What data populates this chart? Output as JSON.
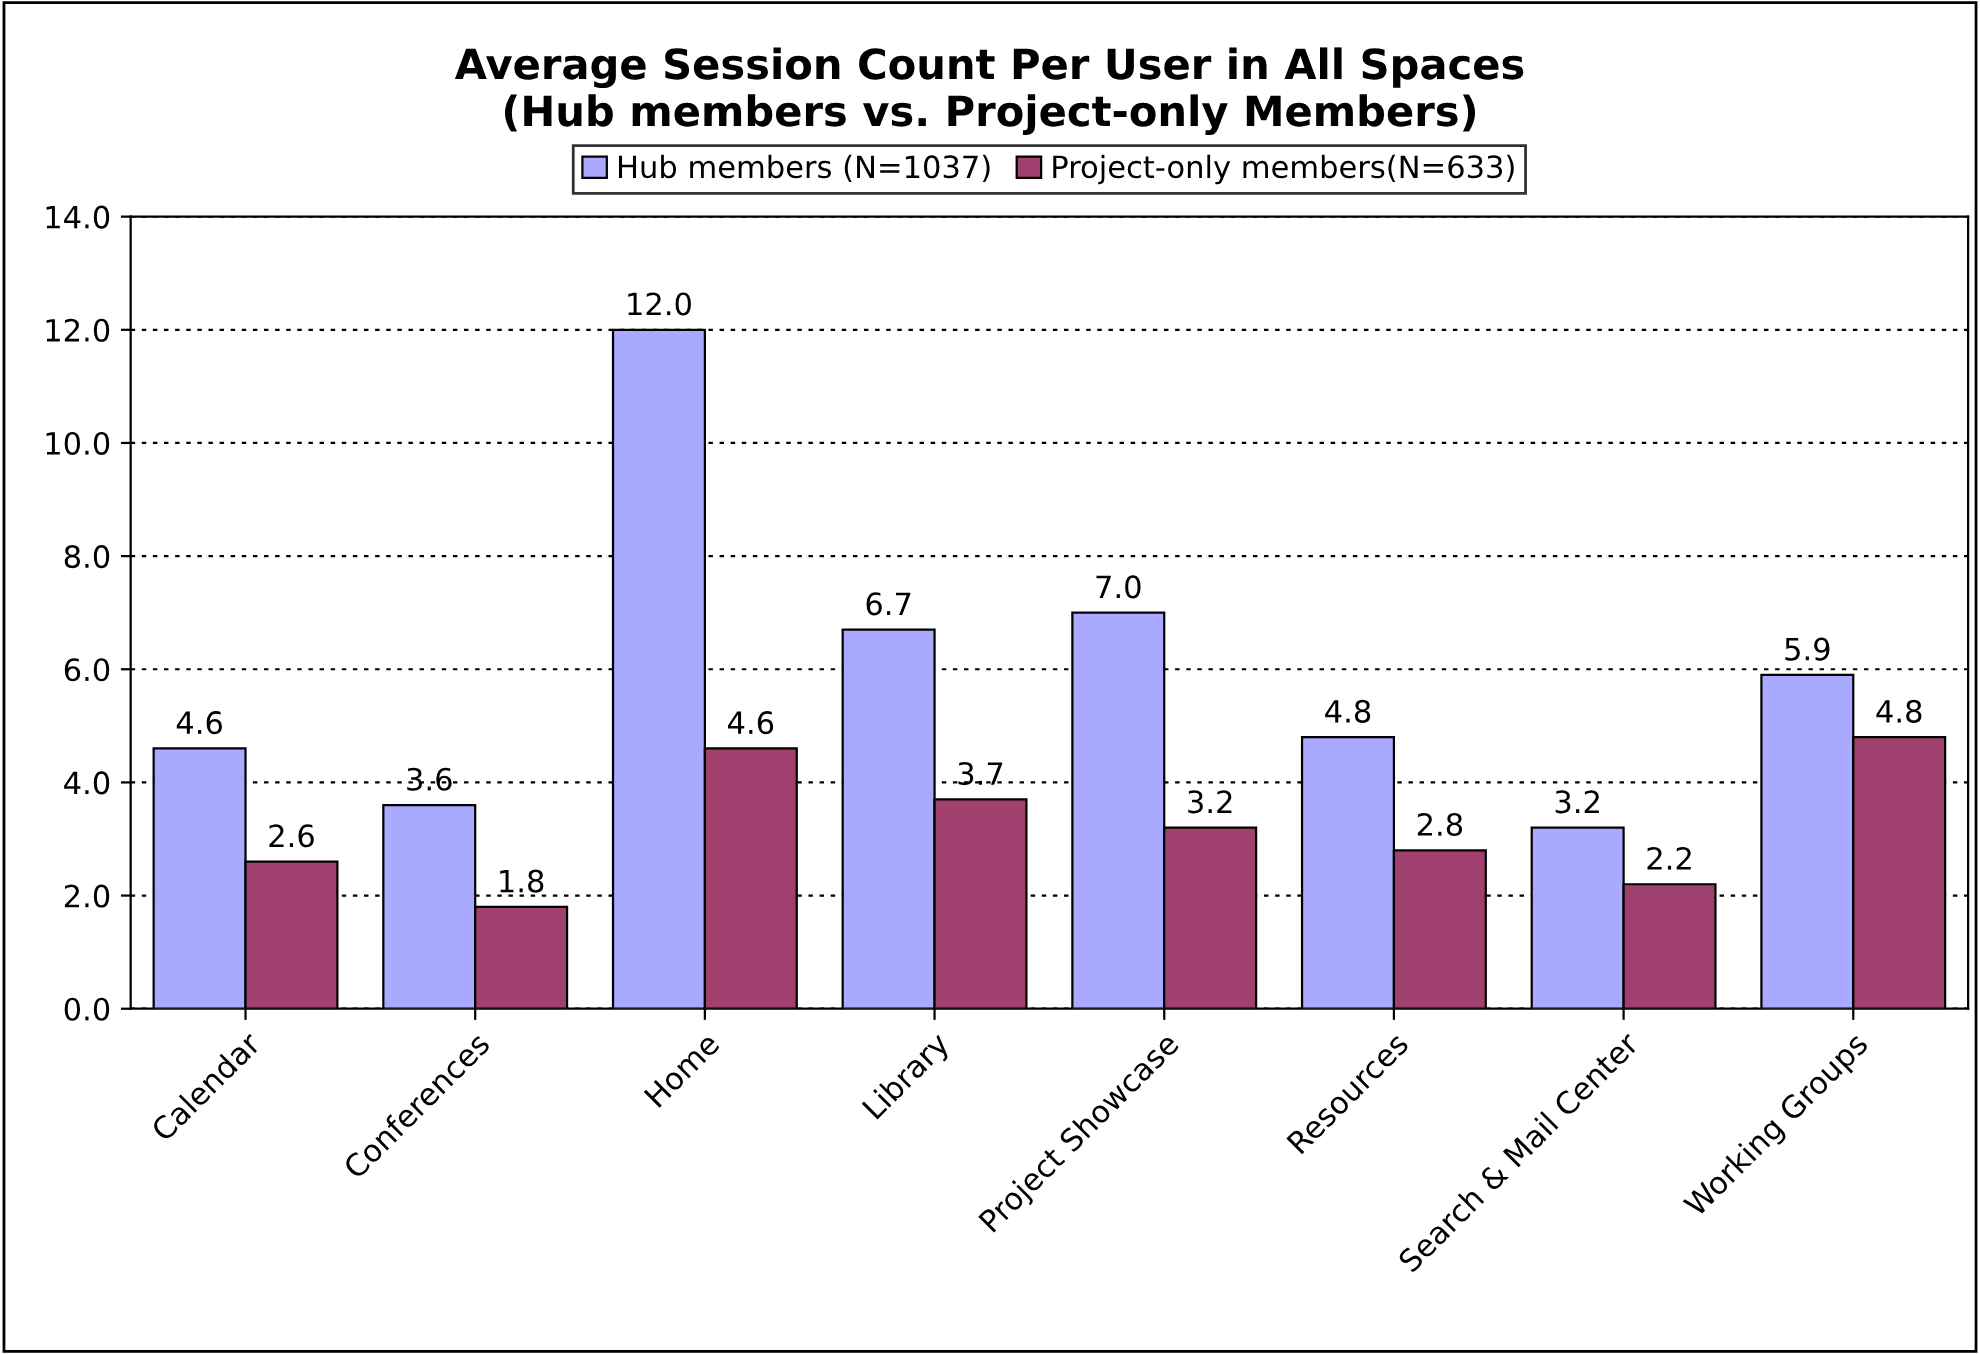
{
  "chart_data": {
    "type": "bar",
    "title": "Average Session Count Per User in All Spaces\n(Hub members vs. Project-only Members)",
    "categories": [
      "Calendar",
      "Conferences",
      "Home",
      "Library",
      "Project Showcase",
      "Resources",
      "Search & Mail Center",
      "Working Groups"
    ],
    "series": [
      {
        "name": "Hub members (N=1037)",
        "color": "#a9a9ff",
        "values": [
          4.6,
          3.6,
          12.0,
          6.7,
          7.0,
          4.8,
          3.2,
          5.9
        ],
        "value_labels": [
          "4.6",
          "3.6",
          "12.0",
          "6.7",
          "7.0",
          "4.8",
          "3.2",
          "5.9"
        ]
      },
      {
        "name": "Project-only members(N=633)",
        "color": "#a0406e",
        "values": [
          2.6,
          1.8,
          4.6,
          3.7,
          3.2,
          2.8,
          2.2,
          4.8
        ],
        "value_labels": [
          "2.6",
          "1.8",
          "4.6",
          "3.7",
          "3.2",
          "2.8",
          "2.2",
          "4.8"
        ]
      }
    ],
    "ylim": [
      0,
      14
    ],
    "yticks": [
      {
        "value": 0,
        "label": "0.0"
      },
      {
        "value": 2,
        "label": "2.0"
      },
      {
        "value": 4,
        "label": "4.0"
      },
      {
        "value": 6,
        "label": "6.0"
      },
      {
        "value": 8,
        "label": "8.0"
      },
      {
        "value": 10,
        "label": "10.0"
      },
      {
        "value": 12,
        "label": "12.0"
      },
      {
        "value": 14,
        "label": "14.0"
      }
    ],
    "grid": "y",
    "legend": "top"
  }
}
